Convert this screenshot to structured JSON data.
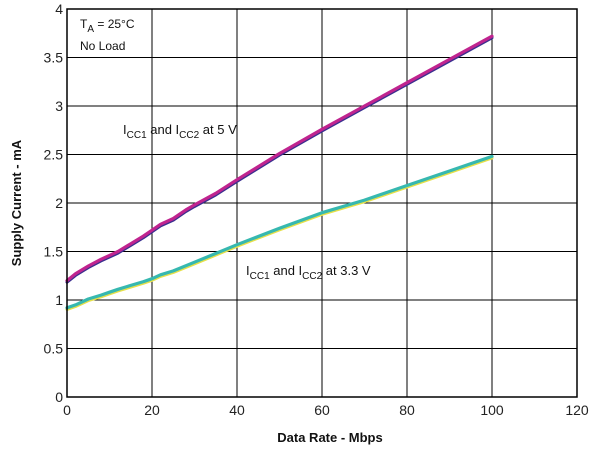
{
  "chart_data": {
    "type": "line",
    "title": "",
    "xlabel": "Data Rate - Mbps",
    "ylabel": "Supply Current - mA",
    "xlim": [
      0,
      120
    ],
    "ylim": [
      0,
      4
    ],
    "x_ticks": [
      "0",
      "20",
      "40",
      "60",
      "80",
      "100",
      "120"
    ],
    "y_ticks": [
      "0",
      "0.5",
      "1",
      "1.5",
      "2",
      "2.5",
      "3",
      "3.5",
      "4"
    ],
    "grid": true,
    "conditions": {
      "ta_main": "T",
      "ta_sub": "A",
      "ta_value": " = 25°C",
      "load": "No Load"
    },
    "annotations": {
      "series1": {
        "p1": "I",
        "s1": "CC1",
        "p2": " and I",
        "s2": "CC2",
        "p3": " at 5 V"
      },
      "series2": {
        "p1": "I",
        "s1": "CC1",
        "p2": " and I",
        "s2": "CC2",
        "p3": " at 3.3 V"
      }
    },
    "series": [
      {
        "color": "#c0248f",
        "shadow_color": "#3a2f8f",
        "x": [
          0,
          2,
          5,
          8,
          10,
          12,
          15,
          18,
          20,
          22,
          25,
          28,
          30,
          35,
          40,
          50,
          60,
          70,
          80,
          90,
          100
        ],
        "y": [
          1.2,
          1.27,
          1.35,
          1.42,
          1.46,
          1.5,
          1.58,
          1.66,
          1.72,
          1.78,
          1.84,
          1.93,
          1.98,
          2.1,
          2.24,
          2.51,
          2.76,
          3.0,
          3.24,
          3.48,
          3.72
        ]
      },
      {
        "color": "#36b8b0",
        "shadow_color": "#e6e04a",
        "x": [
          0,
          2,
          5,
          8,
          10,
          12,
          15,
          18,
          20,
          22,
          25,
          30,
          40,
          50,
          60,
          70,
          80,
          90,
          100
        ],
        "y": [
          0.92,
          0.95,
          1.01,
          1.05,
          1.08,
          1.11,
          1.15,
          1.19,
          1.22,
          1.26,
          1.3,
          1.39,
          1.57,
          1.74,
          1.9,
          2.03,
          2.18,
          2.33,
          2.48
        ]
      }
    ]
  }
}
